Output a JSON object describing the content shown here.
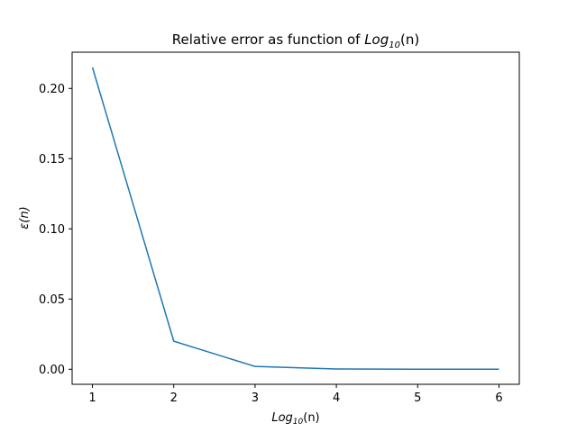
{
  "chart_data": {
    "type": "line",
    "title": {
      "prefix": "Relative error as function of ",
      "math_base": "Log",
      "math_sub": "10",
      "suffix": "(n)"
    },
    "xlabel": {
      "math_base": "Log",
      "math_sub": "10",
      "suffix": "(n)"
    },
    "ylabel": "ε(n)",
    "x": [
      1,
      2,
      3,
      4,
      5,
      6
    ],
    "series": [
      {
        "values": [
          0.215,
          0.02,
          0.002,
          0.0002,
          2e-05,
          2e-06
        ],
        "color": "#1f77b4"
      }
    ],
    "xlim": [
      0.75,
      6.25
    ],
    "ylim": [
      -0.0107,
      0.2258
    ],
    "xticks": [
      1,
      2,
      3,
      4,
      5,
      6
    ],
    "xtick_labels": [
      "1",
      "2",
      "3",
      "4",
      "5",
      "6"
    ],
    "yticks": [
      0.0,
      0.05,
      0.1,
      0.15,
      0.2
    ],
    "ytick_labels": [
      "0.00",
      "0.05",
      "0.10",
      "0.15",
      "0.20"
    ],
    "grid": false,
    "legend": "none"
  }
}
